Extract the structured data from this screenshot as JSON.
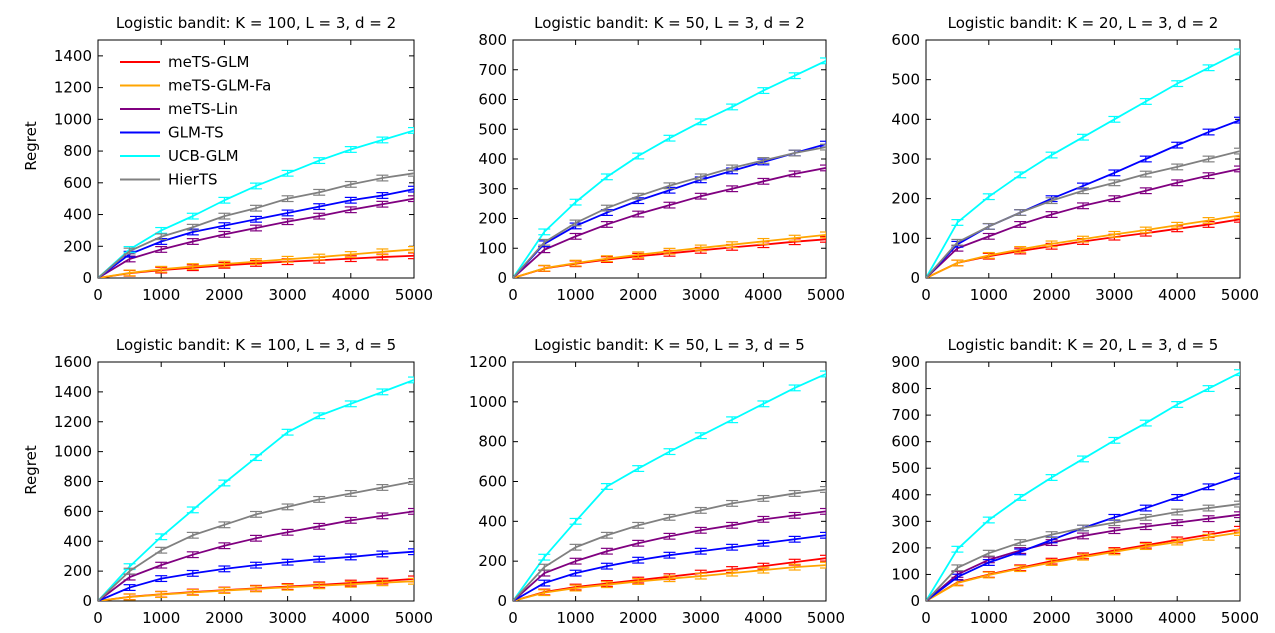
{
  "figure": {
    "ylabel": "Regret"
  },
  "legend": [
    {
      "name": "meTS-GLM",
      "color": "#ff0000"
    },
    {
      "name": "meTS-GLM-Fa",
      "color": "#ffa500"
    },
    {
      "name": "meTS-Lin",
      "color": "#800080"
    },
    {
      "name": "GLM-TS",
      "color": "#0000ff"
    },
    {
      "name": "UCB-GLM",
      "color": "#00ffff"
    },
    {
      "name": "HierTS",
      "color": "#808080"
    }
  ],
  "chart_data": [
    {
      "type": "line",
      "title": "Logistic bandit: K = 100, L = 3, d = 2",
      "ylabel": "Regret",
      "xlim": [
        0,
        5000
      ],
      "ylim": [
        0,
        1500
      ],
      "xticks": [
        0,
        1000,
        2000,
        3000,
        4000,
        5000
      ],
      "yticks": [
        0,
        200,
        400,
        600,
        800,
        1000,
        1200,
        1400
      ],
      "x": [
        0,
        500,
        1000,
        1500,
        2000,
        2500,
        3000,
        3500,
        4000,
        4500,
        5000
      ],
      "series": [
        {
          "name": "meTS-GLM",
          "values": [
            0,
            30,
            50,
            65,
            80,
            92,
            103,
            112,
            122,
            132,
            140
          ]
        },
        {
          "name": "meTS-GLM-Fa",
          "values": [
            0,
            32,
            55,
            72,
            88,
            103,
            118,
            132,
            148,
            165,
            180
          ]
        },
        {
          "name": "meTS-Lin",
          "values": [
            0,
            120,
            180,
            230,
            275,
            315,
            355,
            390,
            430,
            465,
            500
          ]
        },
        {
          "name": "GLM-TS",
          "values": [
            0,
            150,
            230,
            290,
            330,
            370,
            410,
            450,
            490,
            520,
            560
          ]
        },
        {
          "name": "UCB-GLM",
          "values": [
            0,
            180,
            300,
            390,
            490,
            580,
            660,
            740,
            810,
            870,
            930
          ]
        },
        {
          "name": "HierTS",
          "values": [
            0,
            170,
            260,
            320,
            390,
            440,
            500,
            540,
            590,
            630,
            660
          ]
        }
      ]
    },
    {
      "type": "line",
      "title": "Logistic bandit: K = 50, L = 3, d = 2",
      "xlim": [
        0,
        5000
      ],
      "ylim": [
        0,
        800
      ],
      "xticks": [
        0,
        1000,
        2000,
        3000,
        4000,
        5000
      ],
      "yticks": [
        0,
        100,
        200,
        300,
        400,
        500,
        600,
        700,
        800
      ],
      "x": [
        0,
        500,
        1000,
        1500,
        2000,
        2500,
        3000,
        3500,
        4000,
        4500,
        5000
      ],
      "series": [
        {
          "name": "meTS-GLM",
          "values": [
            0,
            32,
            48,
            62,
            73,
            83,
            93,
            103,
            112,
            122,
            130
          ]
        },
        {
          "name": "meTS-GLM-Fa",
          "values": [
            0,
            33,
            50,
            65,
            78,
            90,
            101,
            112,
            123,
            134,
            145
          ]
        },
        {
          "name": "meTS-Lin",
          "values": [
            0,
            95,
            140,
            180,
            215,
            245,
            275,
            300,
            325,
            350,
            370
          ]
        },
        {
          "name": "GLM-TS",
          "values": [
            0,
            115,
            175,
            220,
            260,
            295,
            330,
            360,
            390,
            420,
            450
          ]
        },
        {
          "name": "UCB-GLM",
          "values": [
            0,
            155,
            255,
            340,
            410,
            470,
            525,
            575,
            630,
            680,
            730
          ]
        },
        {
          "name": "HierTS",
          "values": [
            0,
            120,
            185,
            235,
            275,
            310,
            340,
            370,
            395,
            420,
            440
          ]
        }
      ]
    },
    {
      "type": "line",
      "title": "Logistic bandit: K = 20, L = 3, d = 2",
      "xlim": [
        0,
        5000
      ],
      "ylim": [
        0,
        600
      ],
      "xticks": [
        0,
        1000,
        2000,
        3000,
        4000,
        5000
      ],
      "yticks": [
        0,
        100,
        200,
        300,
        400,
        500,
        600
      ],
      "x": [
        0,
        500,
        1000,
        1500,
        2000,
        2500,
        3000,
        3500,
        4000,
        4500,
        5000
      ],
      "series": [
        {
          "name": "meTS-GLM",
          "values": [
            0,
            38,
            55,
            68,
            80,
            92,
            103,
            113,
            124,
            135,
            148
          ]
        },
        {
          "name": "meTS-GLM-Fa",
          "values": [
            0,
            38,
            57,
            72,
            86,
            98,
            110,
            121,
            133,
            145,
            158
          ]
        },
        {
          "name": "meTS-Lin",
          "values": [
            0,
            75,
            105,
            135,
            160,
            182,
            200,
            220,
            240,
            258,
            275
          ]
        },
        {
          "name": "GLM-TS",
          "values": [
            0,
            85,
            130,
            165,
            200,
            232,
            265,
            300,
            335,
            368,
            398
          ]
        },
        {
          "name": "UCB-GLM",
          "values": [
            0,
            140,
            205,
            260,
            310,
            355,
            400,
            445,
            490,
            530,
            570
          ]
        },
        {
          "name": "HierTS",
          "values": [
            0,
            90,
            130,
            165,
            195,
            220,
            240,
            262,
            280,
            300,
            320
          ]
        }
      ]
    },
    {
      "type": "line",
      "title": "Logistic bandit: K = 100, L = 3, d = 5",
      "ylabel": "Regret",
      "xlim": [
        0,
        5000
      ],
      "ylim": [
        0,
        1600
      ],
      "xticks": [
        0,
        1000,
        2000,
        3000,
        4000,
        5000
      ],
      "yticks": [
        0,
        200,
        400,
        600,
        800,
        1000,
        1200,
        1400,
        1600
      ],
      "x": [
        0,
        500,
        1000,
        1500,
        2000,
        2500,
        3000,
        3500,
        4000,
        4500,
        5000
      ],
      "series": [
        {
          "name": "meTS-GLM",
          "values": [
            0,
            28,
            45,
            60,
            73,
            85,
            97,
            108,
            120,
            133,
            148
          ]
        },
        {
          "name": "meTS-GLM-Fa",
          "values": [
            0,
            27,
            43,
            57,
            70,
            81,
            92,
            102,
            112,
            122,
            132
          ]
        },
        {
          "name": "meTS-Lin",
          "values": [
            0,
            160,
            240,
            310,
            370,
            420,
            460,
            500,
            540,
            570,
            600
          ]
        },
        {
          "name": "GLM-TS",
          "values": [
            0,
            90,
            150,
            185,
            215,
            240,
            260,
            280,
            295,
            315,
            330
          ]
        },
        {
          "name": "UCB-GLM",
          "values": [
            0,
            230,
            430,
            610,
            790,
            960,
            1130,
            1240,
            1320,
            1400,
            1480
          ]
        },
        {
          "name": "HierTS",
          "values": [
            0,
            200,
            340,
            440,
            510,
            580,
            630,
            680,
            720,
            760,
            800
          ]
        }
      ]
    },
    {
      "type": "line",
      "title": "Logistic bandit: K = 50, L = 3, d = 5",
      "xlim": [
        0,
        5000
      ],
      "ylim": [
        0,
        1200
      ],
      "xticks": [
        0,
        1000,
        2000,
        3000,
        4000,
        5000
      ],
      "yticks": [
        0,
        200,
        400,
        600,
        800,
        1000,
        1200
      ],
      "x": [
        0,
        500,
        1000,
        1500,
        2000,
        2500,
        3000,
        3500,
        4000,
        4500,
        5000
      ],
      "series": [
        {
          "name": "meTS-GLM",
          "values": [
            0,
            45,
            70,
            88,
            105,
            122,
            140,
            158,
            175,
            195,
            215
          ]
        },
        {
          "name": "meTS-GLM-Fa",
          "values": [
            0,
            42,
            65,
            82,
            98,
            112,
            125,
            140,
            155,
            170,
            180
          ]
        },
        {
          "name": "meTS-Lin",
          "values": [
            0,
            140,
            200,
            250,
            290,
            325,
            355,
            380,
            410,
            430,
            450
          ]
        },
        {
          "name": "GLM-TS",
          "values": [
            0,
            90,
            140,
            175,
            205,
            230,
            250,
            270,
            290,
            310,
            330
          ]
        },
        {
          "name": "UCB-GLM",
          "values": [
            0,
            220,
            400,
            575,
            665,
            750,
            830,
            910,
            990,
            1070,
            1140
          ]
        },
        {
          "name": "HierTS",
          "values": [
            0,
            170,
            270,
            330,
            380,
            420,
            455,
            490,
            515,
            540,
            560
          ]
        }
      ]
    },
    {
      "type": "line",
      "title": "Logistic bandit: K = 20, L = 3, d = 5",
      "xlim": [
        0,
        5000
      ],
      "ylim": [
        0,
        900
      ],
      "xticks": [
        0,
        1000,
        2000,
        3000,
        4000,
        5000
      ],
      "yticks": [
        0,
        100,
        200,
        300,
        400,
        500,
        600,
        700,
        800,
        900
      ],
      "x": [
        0,
        500,
        1000,
        1500,
        2000,
        2500,
        3000,
        3500,
        4000,
        4500,
        5000
      ],
      "series": [
        {
          "name": "meTS-GLM",
          "values": [
            0,
            70,
            100,
            125,
            150,
            170,
            190,
            210,
            230,
            250,
            270
          ]
        },
        {
          "name": "meTS-GLM-Fa",
          "values": [
            0,
            68,
            98,
            122,
            145,
            165,
            185,
            205,
            222,
            240,
            258
          ]
        },
        {
          "name": "meTS-Lin",
          "values": [
            0,
            100,
            155,
            190,
            220,
            245,
            265,
            280,
            295,
            310,
            325
          ]
        },
        {
          "name": "GLM-TS",
          "values": [
            0,
            90,
            145,
            185,
            230,
            275,
            315,
            350,
            390,
            430,
            470
          ]
        },
        {
          "name": "UCB-GLM",
          "values": [
            0,
            195,
            305,
            390,
            465,
            535,
            605,
            670,
            740,
            800,
            860
          ]
        },
        {
          "name": "HierTS",
          "values": [
            0,
            125,
            180,
            220,
            250,
            275,
            295,
            315,
            335,
            350,
            365
          ]
        }
      ]
    }
  ]
}
